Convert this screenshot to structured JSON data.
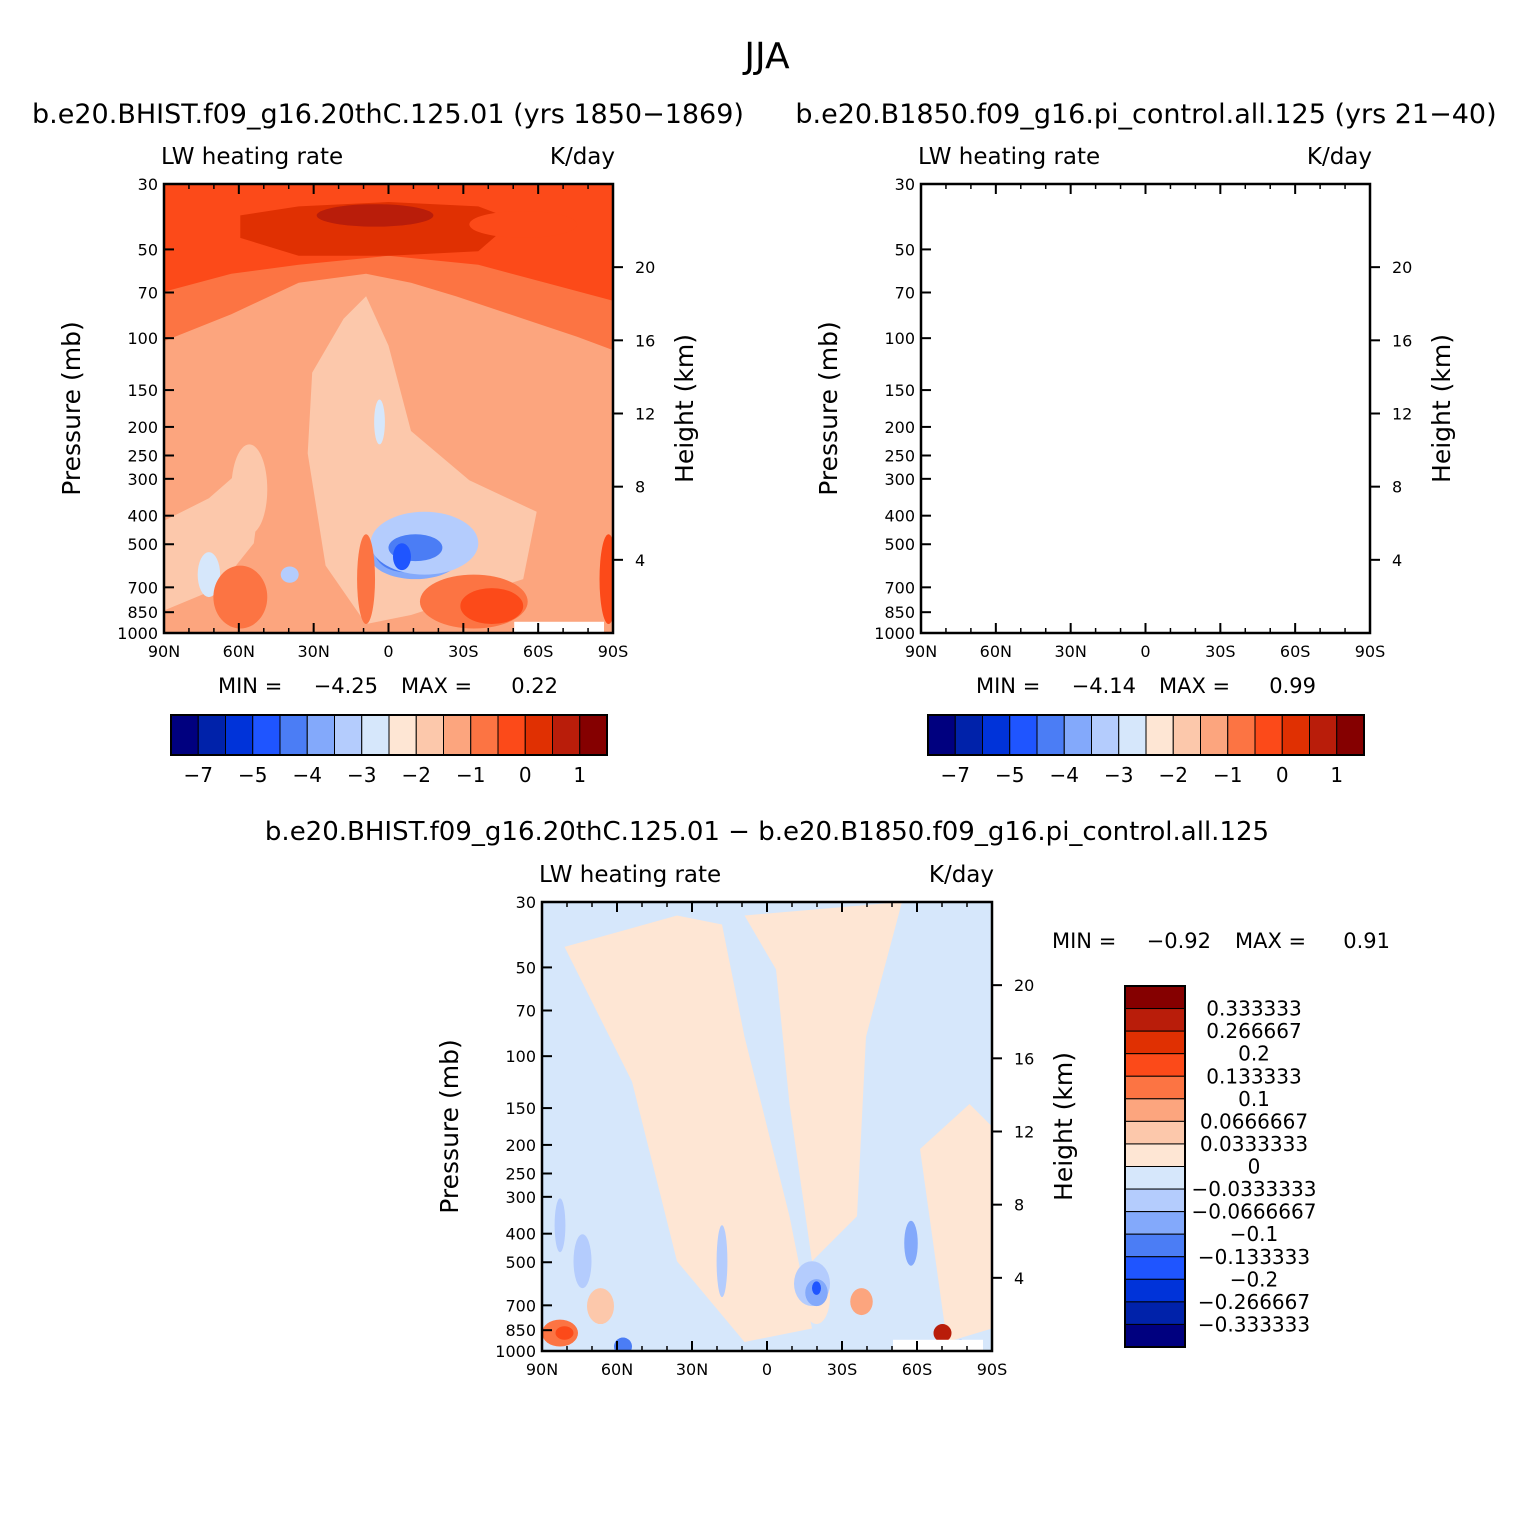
{
  "page_title": "JJA",
  "chart_data": [
    {
      "type": "contour",
      "title_left": "b.e20.BHIST.f09_g16.20thC.125.01 (yrs 1850-1869)",
      "subtitle_left": "LW heating rate",
      "subtitle_right": "K/day",
      "xlabel": "",
      "ylabel": "Pressure (mb)",
      "ylabel_right": "Height (km)",
      "x_ticks": [
        "90N",
        "60N",
        "30N",
        "0",
        "30S",
        "60S",
        "90S"
      ],
      "y_ticks": [
        "30",
        "50",
        "70",
        "100",
        "150",
        "200",
        "250",
        "300",
        "400",
        "500",
        "700",
        "850",
        "1000"
      ],
      "y_right_ticks": [
        "20",
        "16",
        "12",
        "8",
        "4"
      ],
      "min_label": "MIN =",
      "min_value": "-4.25",
      "max_label": "MAX =",
      "max_value": "0.22",
      "colorbar_labels": [
        "-7",
        "-5",
        "-4",
        "-3",
        "-2",
        "-1",
        "0",
        "1"
      ],
      "colorbar_colors": [
        "#00007f",
        "#0022aa",
        "#0033d9",
        "#1f55ff",
        "#4b7df5",
        "#83a9fb",
        "#b4ccfd",
        "#d6e7fb",
        "#fee6d4",
        "#fcc8ab",
        "#fca57e",
        "#fc7443",
        "#fc4a19",
        "#e03002",
        "#b91d0a",
        "#850000"
      ]
    },
    {
      "type": "contour",
      "title_left": "b.e20.B1850.f09_g16.pi_control.all.125 (yrs 21-40)",
      "subtitle_left": "LW heating rate",
      "subtitle_right": "K/day",
      "xlabel": "",
      "ylabel": "Pressure (mb)",
      "ylabel_right": "Height (km)",
      "x_ticks": [
        "90N",
        "60N",
        "30N",
        "0",
        "30S",
        "60S",
        "90S"
      ],
      "y_ticks": [
        "30",
        "50",
        "70",
        "100",
        "150",
        "200",
        "250",
        "300",
        "400",
        "500",
        "700",
        "850",
        "1000"
      ],
      "y_right_ticks": [
        "20",
        "16",
        "12",
        "8",
        "4"
      ],
      "min_label": "MIN =",
      "min_value": "-4.14",
      "max_label": "MAX =",
      "max_value": "0.99",
      "colorbar_labels": [
        "-7",
        "-5",
        "-4",
        "-3",
        "-2",
        "-1",
        "0",
        "1"
      ],
      "colorbar_colors": [
        "#00007f",
        "#0022aa",
        "#0033d9",
        "#1f55ff",
        "#4b7df5",
        "#83a9fb",
        "#b4ccfd",
        "#d6e7fb",
        "#fee6d4",
        "#fcc8ab",
        "#fca57e",
        "#fc7443",
        "#fc4a19",
        "#e03002",
        "#b91d0a",
        "#850000"
      ]
    },
    {
      "type": "contour",
      "title_left": "b.e20.BHIST.f09_g16.20thC.125.01 - b.e20.B1850.f09_g16.pi_control.all.125",
      "subtitle_left": "LW heating rate",
      "subtitle_right": "K/day",
      "xlabel": "",
      "ylabel": "Pressure (mb)",
      "ylabel_right": "Height (km)",
      "x_ticks": [
        "90N",
        "60N",
        "30N",
        "0",
        "30S",
        "60S",
        "90S"
      ],
      "y_ticks": [
        "30",
        "50",
        "70",
        "100",
        "150",
        "200",
        "250",
        "300",
        "400",
        "500",
        "700",
        "850",
        "1000"
      ],
      "y_right_ticks": [
        "20",
        "16",
        "12",
        "8",
        "4"
      ],
      "min_label": "MIN =",
      "min_value": "-0.92",
      "max_label": "MAX =",
      "max_value": "0.91",
      "colorbar_labels": [
        "0.333333",
        "0.266667",
        "0.2",
        "0.133333",
        "0.1",
        "0.0666667",
        "0.0333333",
        "0",
        "-0.0333333",
        "-0.0666667",
        "-0.1",
        "-0.133333",
        "-0.2",
        "-0.266667",
        "-0.333333"
      ],
      "colorbar_colors": [
        "#850000",
        "#b91d0a",
        "#e03002",
        "#fc4a19",
        "#fc7443",
        "#fca57e",
        "#fcc8ab",
        "#fee6d4",
        "#d6e7fb",
        "#b4ccfd",
        "#83a9fb",
        "#4b7df5",
        "#1f55ff",
        "#0033d9",
        "#0022aa",
        "#00007f"
      ]
    }
  ]
}
